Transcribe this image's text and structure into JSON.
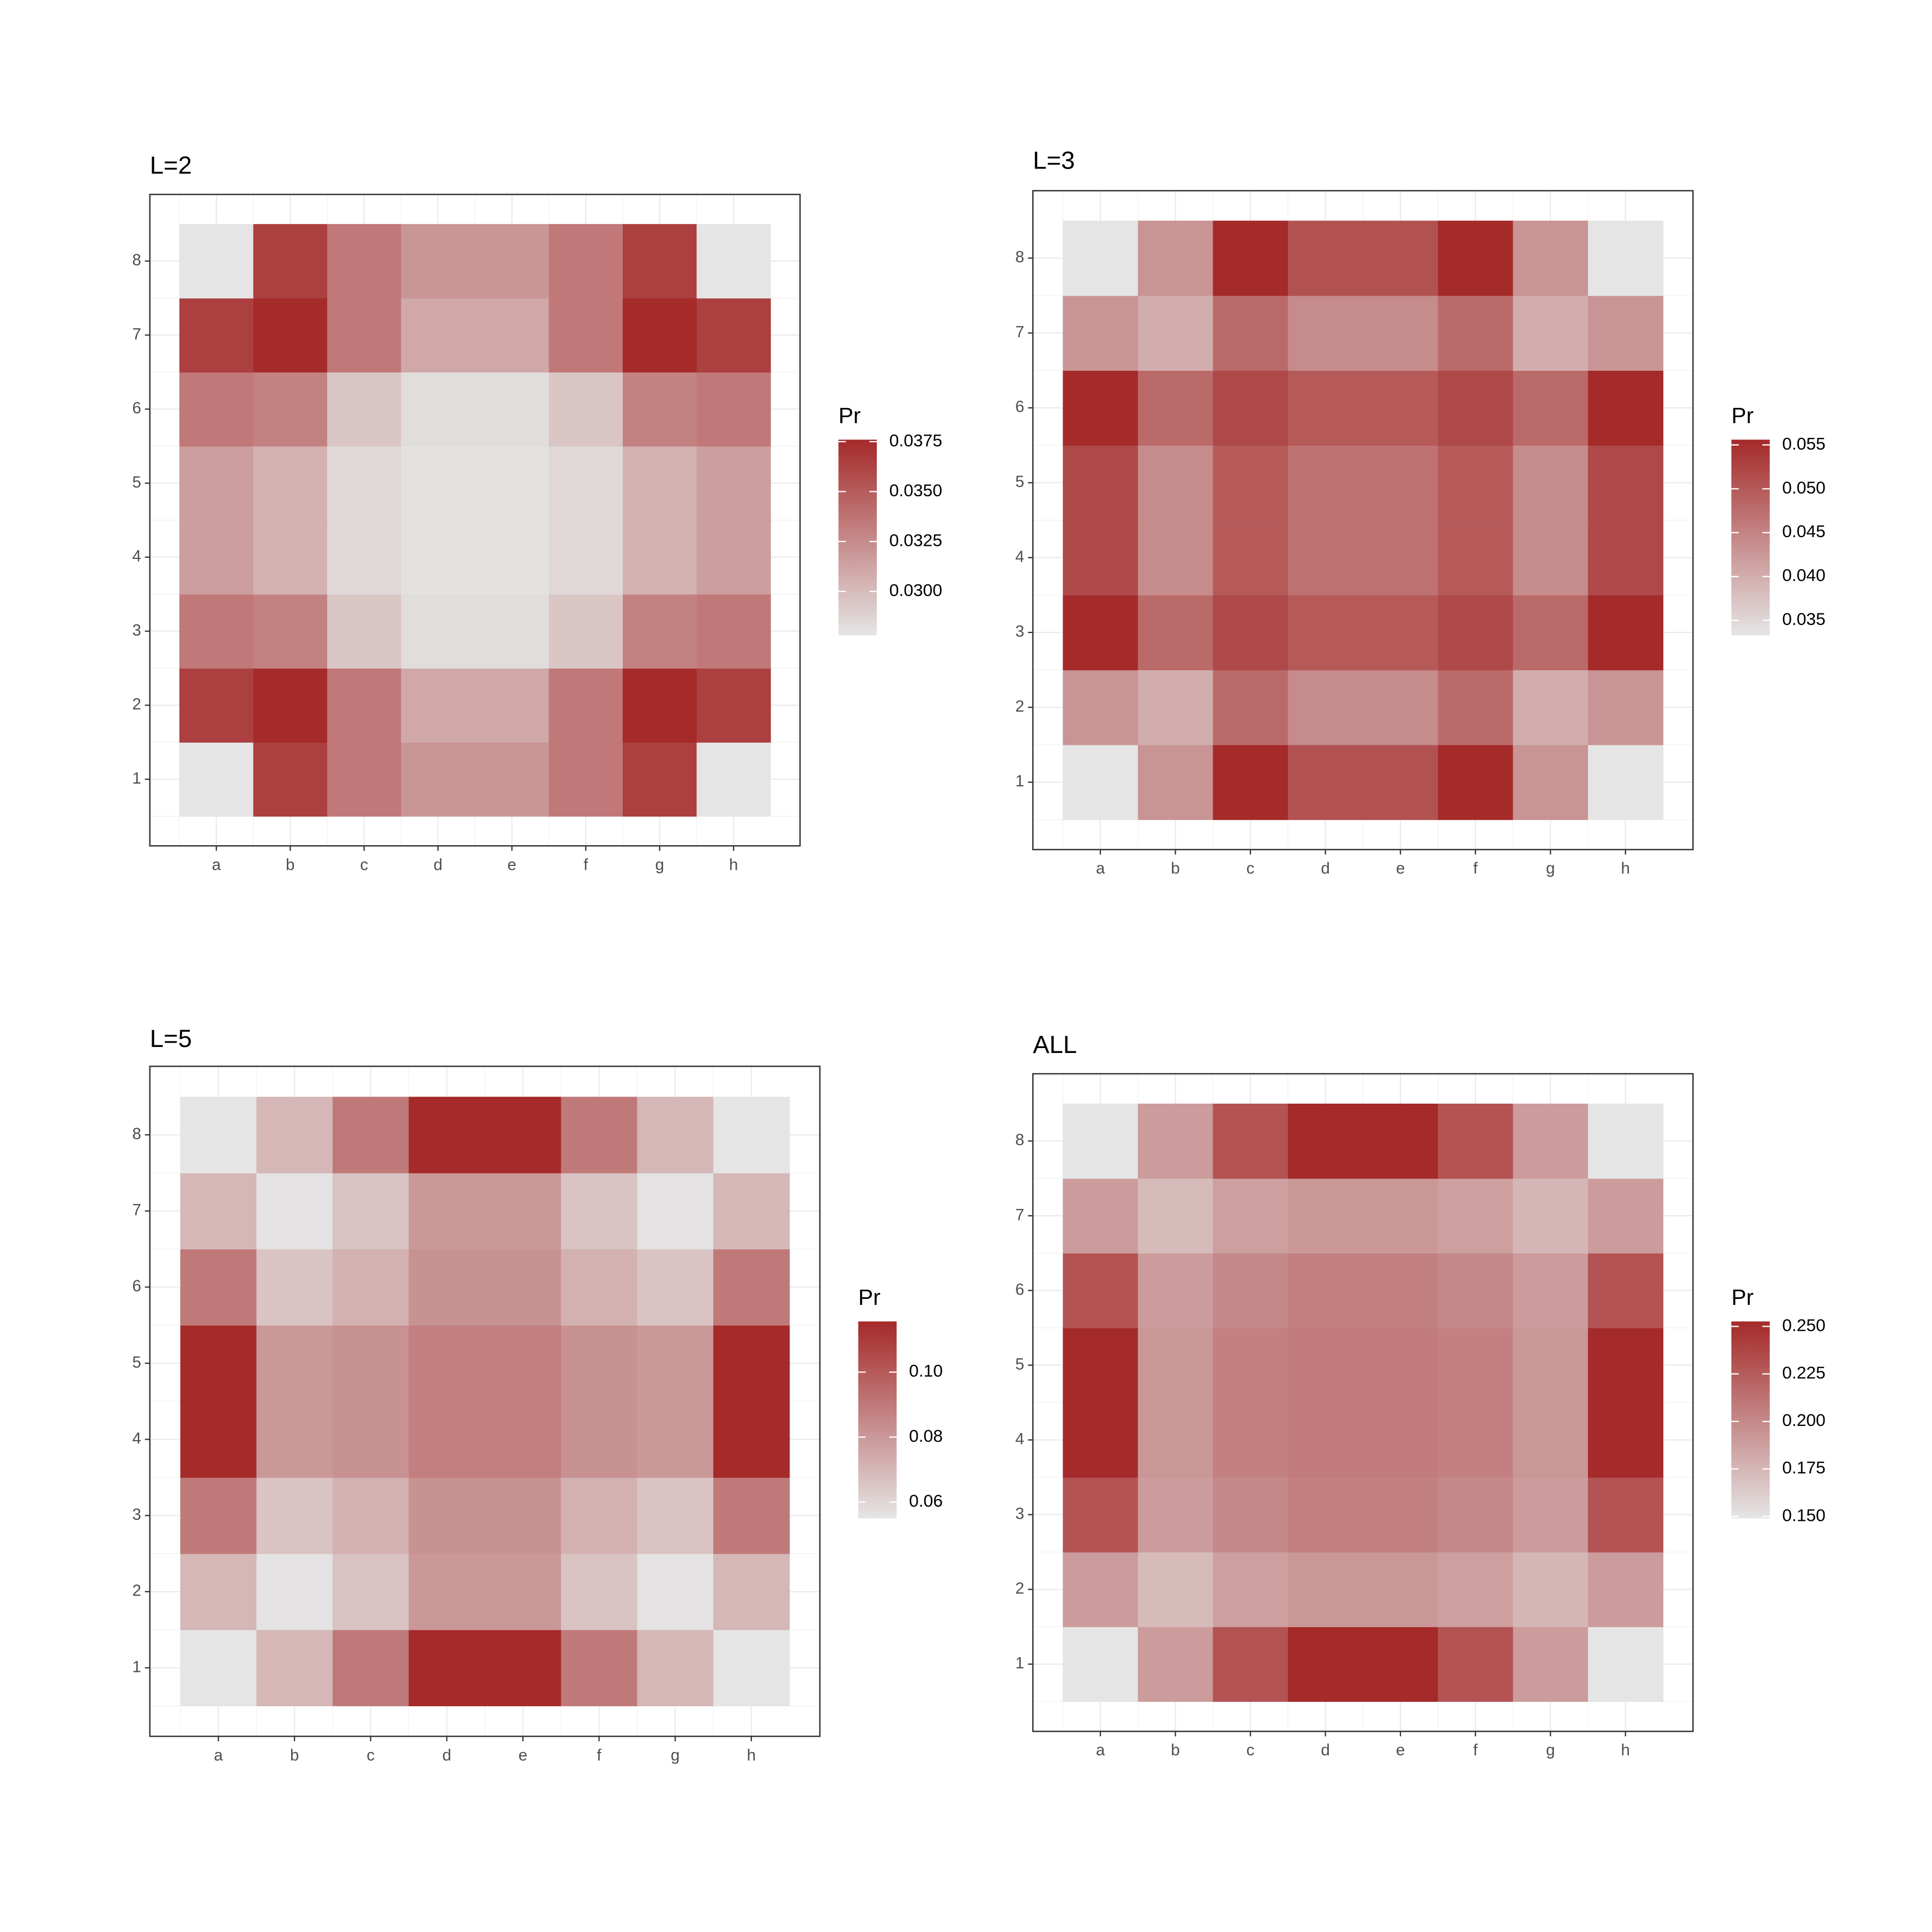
{
  "chart_data": [
    {
      "type": "heatmap",
      "title": "L=2",
      "legend_title": "Pr",
      "x": [
        "a",
        "b",
        "c",
        "d",
        "e",
        "f",
        "g",
        "h"
      ],
      "y": [
        "1",
        "2",
        "3",
        "4",
        "5",
        "6",
        "7",
        "8"
      ],
      "values": [
        [
          0.0278,
          0.0365,
          0.0335,
          0.032,
          0.032,
          0.0335,
          0.0365,
          0.0278
        ],
        [
          0.0365,
          0.0376,
          0.0335,
          0.031,
          0.031,
          0.0335,
          0.0376,
          0.0365
        ],
        [
          0.0335,
          0.033,
          0.0295,
          0.0282,
          0.0282,
          0.0295,
          0.033,
          0.0335
        ],
        [
          0.0315,
          0.0305,
          0.0285,
          0.028,
          0.028,
          0.0285,
          0.0305,
          0.0315
        ],
        [
          0.0315,
          0.0305,
          0.0285,
          0.028,
          0.028,
          0.0285,
          0.0305,
          0.0315
        ],
        [
          0.0335,
          0.033,
          0.0295,
          0.0282,
          0.0282,
          0.0295,
          0.033,
          0.0335
        ],
        [
          0.0365,
          0.0376,
          0.0335,
          0.031,
          0.031,
          0.0335,
          0.0376,
          0.0365
        ],
        [
          0.0278,
          0.0365,
          0.0335,
          0.032,
          0.032,
          0.0335,
          0.0365,
          0.0278
        ]
      ],
      "zlim": [
        0.0278,
        0.0376
      ],
      "zticks": [
        {
          "value": 0.03,
          "label": "0.0300"
        },
        0.0325,
        {
          "value": 0.035,
          "label": "0.0350"
        },
        0.0375
      ],
      "colors": [
        "#e5e5e5",
        "#a52a2a"
      ]
    },
    {
      "type": "heatmap",
      "title": "L=3",
      "legend_title": "Pr",
      "x": [
        "a",
        "b",
        "c",
        "d",
        "e",
        "f",
        "g",
        "h"
      ],
      "y": [
        "1",
        "2",
        "3",
        "4",
        "5",
        "6",
        "7",
        "8"
      ],
      "values": [
        [
          0.0333,
          0.043,
          0.0556,
          0.051,
          0.051,
          0.0556,
          0.043,
          0.0333
        ],
        [
          0.043,
          0.04,
          0.048,
          0.044,
          0.044,
          0.048,
          0.04,
          0.043
        ],
        [
          0.0556,
          0.048,
          0.052,
          0.05,
          0.05,
          0.052,
          0.048,
          0.0556
        ],
        [
          0.052,
          0.044,
          0.05,
          0.047,
          0.047,
          0.05,
          0.044,
          0.052
        ],
        [
          0.052,
          0.044,
          0.05,
          0.047,
          0.047,
          0.05,
          0.044,
          0.052
        ],
        [
          0.0556,
          0.048,
          0.052,
          0.05,
          0.05,
          0.052,
          0.048,
          0.0556
        ],
        [
          0.043,
          0.04,
          0.048,
          0.044,
          0.044,
          0.048,
          0.04,
          0.043
        ],
        [
          0.0333,
          0.043,
          0.0556,
          0.051,
          0.051,
          0.0556,
          0.043,
          0.0333
        ]
      ],
      "zlim": [
        0.0333,
        0.0556
      ],
      "zticks": [
        0.035,
        {
          "value": 0.04,
          "label": "0.040"
        },
        0.045,
        {
          "value": 0.05,
          "label": "0.050"
        },
        0.055
      ],
      "colors": [
        "#e5e5e5",
        "#a52a2a"
      ]
    },
    {
      "type": "heatmap",
      "title": "L=5",
      "legend_title": "Pr",
      "x": [
        "a",
        "b",
        "c",
        "d",
        "e",
        "f",
        "g",
        "h"
      ],
      "y": [
        "1",
        "2",
        "3",
        "4",
        "5",
        "6",
        "7",
        "8"
      ],
      "values": [
        [
          0.055,
          0.07,
          0.09,
          0.1156,
          0.1156,
          0.09,
          0.07,
          0.055
        ],
        [
          0.07,
          0.056,
          0.066,
          0.08,
          0.08,
          0.066,
          0.056,
          0.07
        ],
        [
          0.09,
          0.066,
          0.072,
          0.082,
          0.082,
          0.072,
          0.066,
          0.09
        ],
        [
          0.1156,
          0.08,
          0.082,
          0.088,
          0.088,
          0.082,
          0.08,
          0.1156
        ],
        [
          0.1156,
          0.08,
          0.082,
          0.088,
          0.088,
          0.082,
          0.08,
          0.1156
        ],
        [
          0.09,
          0.066,
          0.072,
          0.082,
          0.082,
          0.072,
          0.066,
          0.09
        ],
        [
          0.07,
          0.056,
          0.066,
          0.08,
          0.08,
          0.066,
          0.056,
          0.07
        ],
        [
          0.055,
          0.07,
          0.09,
          0.1156,
          0.1156,
          0.09,
          0.07,
          0.055
        ]
      ],
      "zlim": [
        0.055,
        0.1156
      ],
      "zticks": [
        0.06,
        0.08,
        {
          "value": 0.1,
          "label": "0.10"
        }
      ],
      "colors": [
        "#e5e5e5",
        "#a52a2a"
      ]
    },
    {
      "type": "heatmap",
      "title": "ALL",
      "legend_title": "Pr",
      "x": [
        "a",
        "b",
        "c",
        "d",
        "e",
        "f",
        "g",
        "h"
      ],
      "y": [
        "1",
        "2",
        "3",
        "4",
        "5",
        "6",
        "7",
        "8"
      ],
      "values": [
        [
          0.149,
          0.19,
          0.23,
          0.2526,
          0.2526,
          0.23,
          0.19,
          0.149
        ],
        [
          0.19,
          0.172,
          0.188,
          0.192,
          0.192,
          0.188,
          0.175,
          0.19
        ],
        [
          0.23,
          0.19,
          0.2,
          0.205,
          0.205,
          0.2,
          0.19,
          0.23
        ],
        [
          0.2526,
          0.192,
          0.205,
          0.208,
          0.208,
          0.205,
          0.192,
          0.2526
        ],
        [
          0.2526,
          0.192,
          0.205,
          0.208,
          0.208,
          0.205,
          0.192,
          0.2526
        ],
        [
          0.23,
          0.19,
          0.2,
          0.205,
          0.205,
          0.2,
          0.19,
          0.23
        ],
        [
          0.19,
          0.172,
          0.188,
          0.192,
          0.192,
          0.188,
          0.175,
          0.19
        ],
        [
          0.149,
          0.19,
          0.23,
          0.2526,
          0.2526,
          0.23,
          0.19,
          0.149
        ]
      ],
      "zlim": [
        0.149,
        0.2526
      ],
      "zticks": [
        {
          "value": 0.15,
          "label": "0.150"
        },
        0.175,
        {
          "value": 0.2,
          "label": "0.200"
        },
        0.225,
        {
          "value": 0.25,
          "label": "0.250"
        }
      ],
      "colors": [
        "#e5e5e5",
        "#a52a2a"
      ]
    }
  ]
}
